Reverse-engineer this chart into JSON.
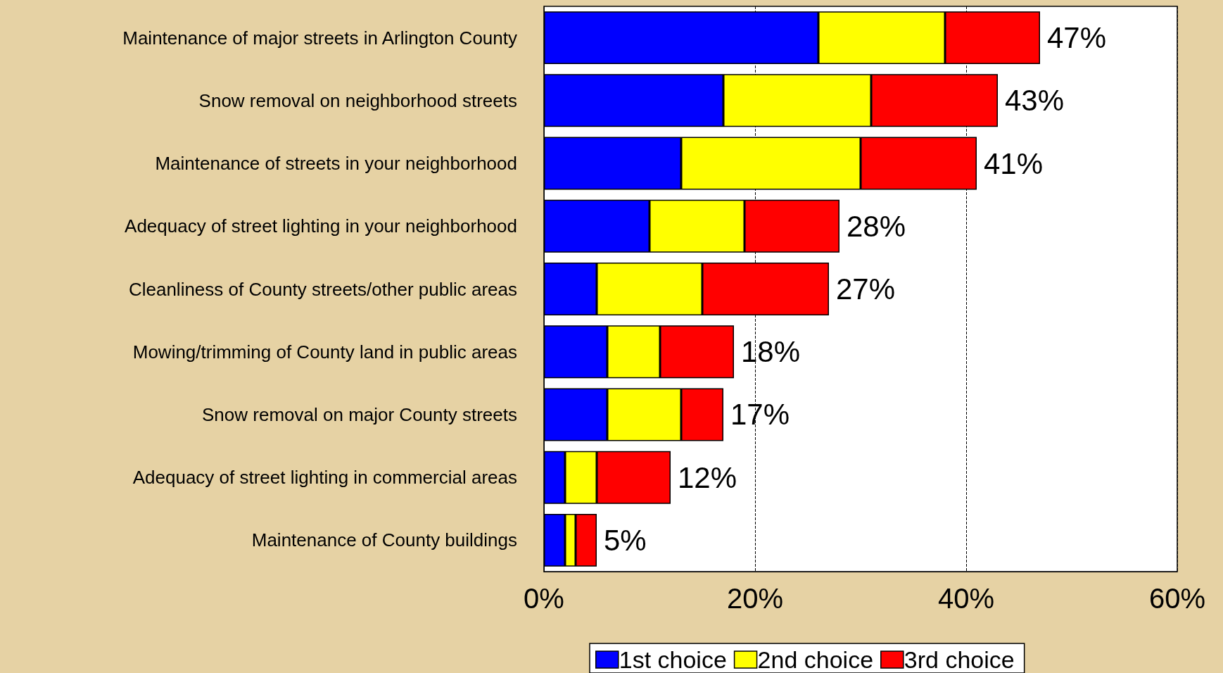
{
  "chart_data": {
    "type": "bar",
    "orientation": "horizontal",
    "stacked": true,
    "categories": [
      "Maintenance of major streets in Arlington County",
      "Snow removal on neighborhood streets",
      "Maintenance of streets in your neighborhood",
      "Adequacy of street lighting in your neighborhood",
      "Cleanliness of County streets/other public areas",
      "Mowing/trimming of County land in public areas",
      "Snow removal on major County streets",
      "Adequacy of street lighting in commercial areas",
      "Maintenance of County buildings"
    ],
    "series": [
      {
        "name": "1st choice",
        "color": "#0000ff",
        "values": [
          26,
          17,
          13,
          10,
          5,
          6,
          6,
          2,
          2
        ]
      },
      {
        "name": "2nd choice",
        "color": "#ffff00",
        "values": [
          12,
          14,
          17,
          9,
          10,
          5,
          7,
          3,
          1
        ]
      },
      {
        "name": "3rd choice",
        "color": "#ff0000",
        "values": [
          9,
          12,
          11,
          9,
          12,
          7,
          4,
          7,
          2
        ]
      }
    ],
    "totals": [
      "47%",
      "43%",
      "41%",
      "28%",
      "27%",
      "18%",
      "17%",
      "12%",
      "5%"
    ],
    "xlim": [
      0,
      60
    ],
    "xticks": [
      {
        "value": 0,
        "label": "0%"
      },
      {
        "value": 20,
        "label": "20%"
      },
      {
        "value": 40,
        "label": "40%"
      },
      {
        "value": 60,
        "label": "60%"
      }
    ],
    "grid": "x",
    "legend": "bottom"
  }
}
